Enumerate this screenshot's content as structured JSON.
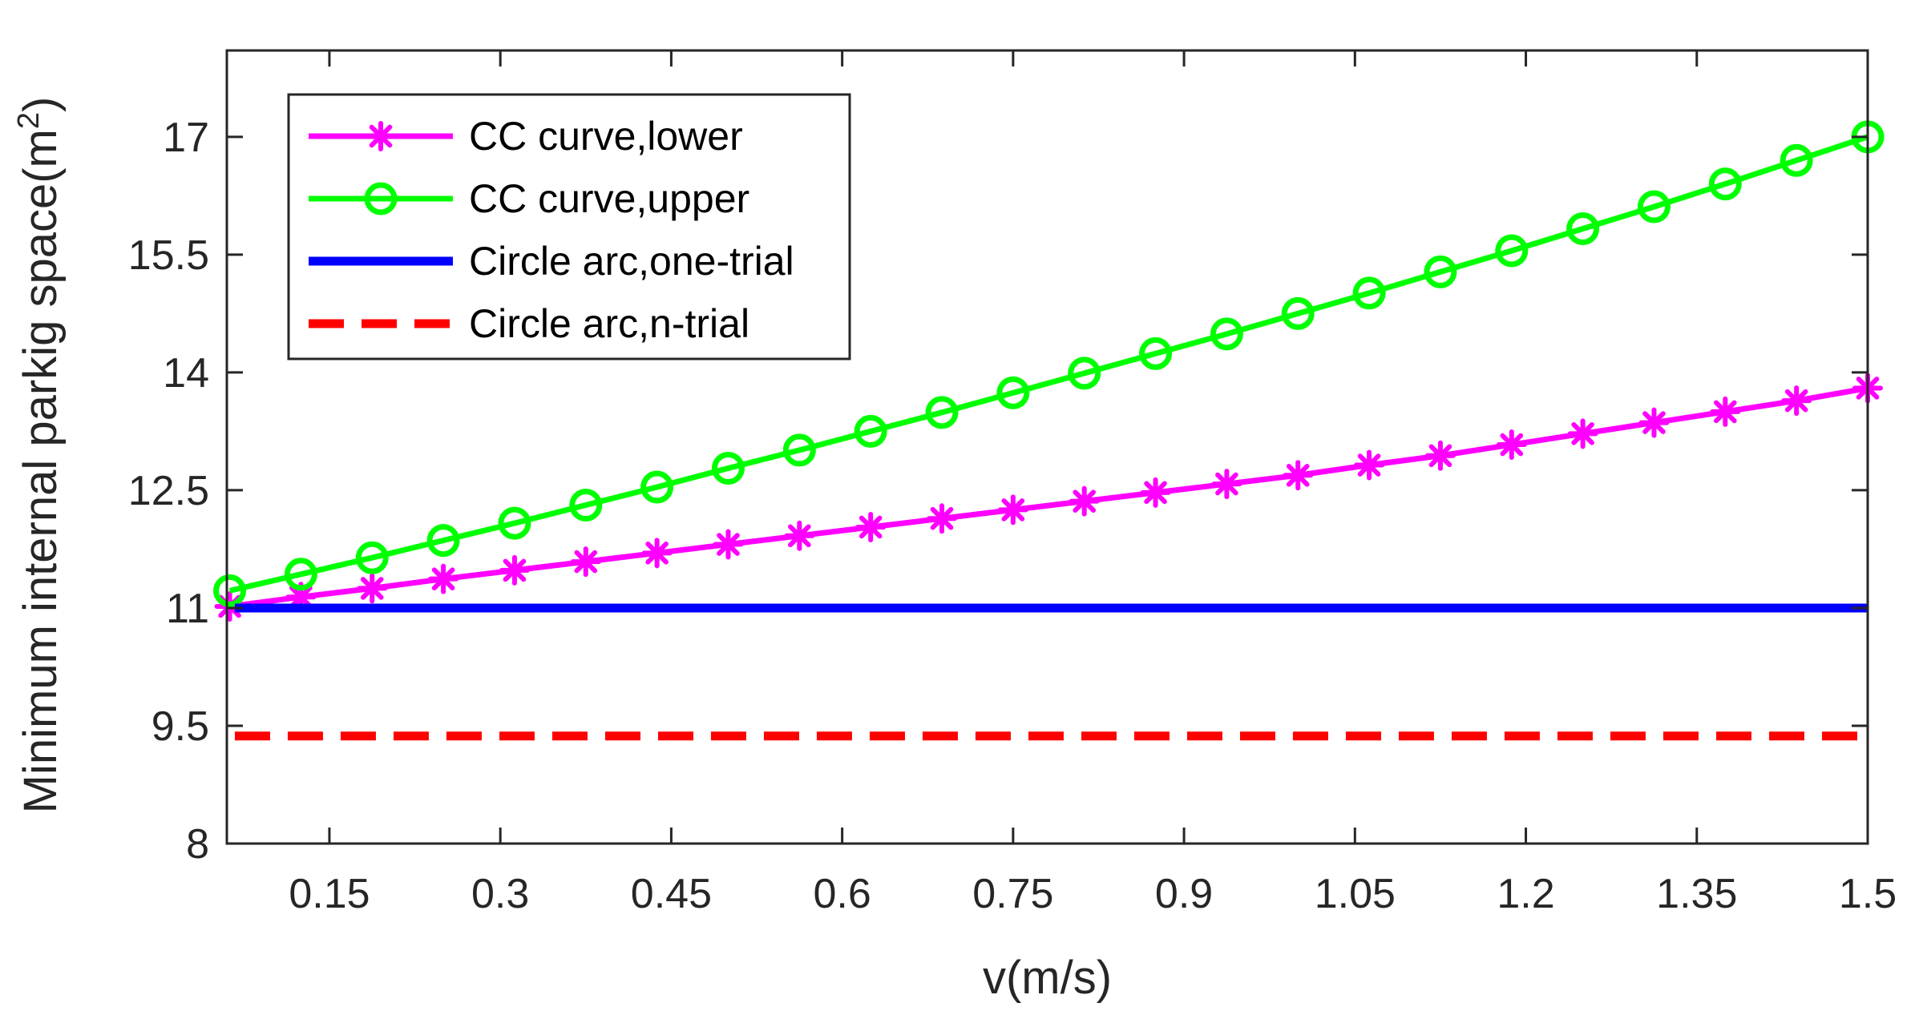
{
  "chart_data": {
    "type": "line",
    "xlabel": "v(m/s)",
    "ylabel": "Minimum internal parkig space(m",
    "ylabel_superscript": "2",
    "ylabel_suffix": ")",
    "xlim": [
      0.06,
      1.5
    ],
    "ylim": [
      8,
      18.1
    ],
    "xticks": [
      0.15,
      0.3,
      0.45,
      0.6,
      0.75,
      0.9,
      1.05,
      1.2,
      1.35,
      1.5
    ],
    "xtick_labels": [
      "0.15",
      "0.3",
      "0.45",
      "0.6",
      "0.75",
      "0.9",
      "1.05",
      "1.2",
      "1.35",
      "1.5"
    ],
    "yticks": [
      8,
      9.5,
      11,
      12.5,
      14,
      15.5,
      17
    ],
    "ytick_labels": [
      "8",
      "9.5",
      "11",
      "12.5",
      "14",
      "15.5",
      "17"
    ],
    "x": [
      0.0625,
      0.125,
      0.1875,
      0.25,
      0.3125,
      0.375,
      0.4375,
      0.5,
      0.5625,
      0.625,
      0.6875,
      0.75,
      0.8125,
      0.875,
      0.9375,
      1.0,
      1.0625,
      1.125,
      1.1875,
      1.25,
      1.3125,
      1.375,
      1.4375,
      1.5
    ],
    "series": [
      {
        "name": "CC curve,lower",
        "color": "#ff00ff",
        "style": "solid",
        "marker": "asterisk",
        "values": [
          11.02,
          11.14,
          11.25,
          11.37,
          11.48,
          11.59,
          11.7,
          11.81,
          11.92,
          12.03,
          12.14,
          12.25,
          12.36,
          12.47,
          12.58,
          12.69,
          12.82,
          12.94,
          13.08,
          13.22,
          13.36,
          13.5,
          13.64,
          13.8
        ]
      },
      {
        "name": "CC curve,upper",
        "color": "#00ff00",
        "style": "solid",
        "marker": "circle",
        "values": [
          11.22,
          11.43,
          11.64,
          11.86,
          12.08,
          12.31,
          12.54,
          12.78,
          13.01,
          13.25,
          13.49,
          13.74,
          13.99,
          14.24,
          14.49,
          14.75,
          15.01,
          15.28,
          15.55,
          15.83,
          16.11,
          16.4,
          16.7,
          17.0
        ]
      },
      {
        "name": "Circle arc,one-trial",
        "color": "#0000ff",
        "style": "solid",
        "marker": "none",
        "constant": 11.0
      },
      {
        "name": "Circle arc,n-trial",
        "color": "#ff0000",
        "style": "dashed",
        "marker": "none",
        "constant": 9.37
      }
    ],
    "legend_position": "top-left"
  }
}
